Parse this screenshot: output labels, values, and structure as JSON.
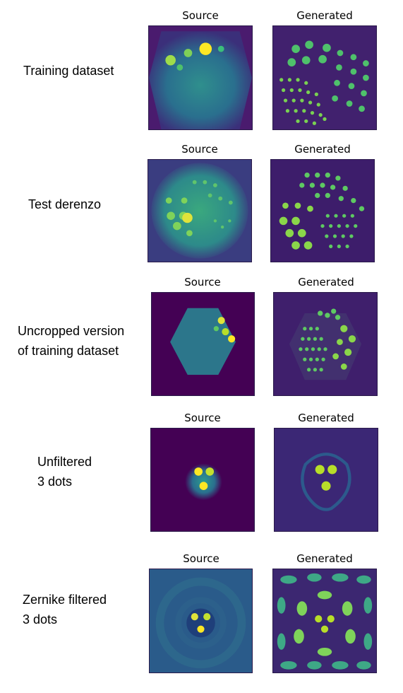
{
  "headers": {
    "source": "Source",
    "generated": "Generated"
  },
  "rows": [
    {
      "label_lines": [
        "Training dataset"
      ]
    },
    {
      "label_lines": [
        "Test derenzo"
      ]
    },
    {
      "label_lines": [
        "Uncropped version",
        "of training dataset"
      ]
    },
    {
      "label_lines": [
        "Unfiltered",
        "3 dots"
      ]
    },
    {
      "label_lines": [
        "Zernike filtered",
        "3 dots"
      ]
    }
  ],
  "colors": {
    "background_dark": "#440154",
    "teal": "#21918c",
    "green": "#5ec962",
    "yellow": "#fde725"
  }
}
